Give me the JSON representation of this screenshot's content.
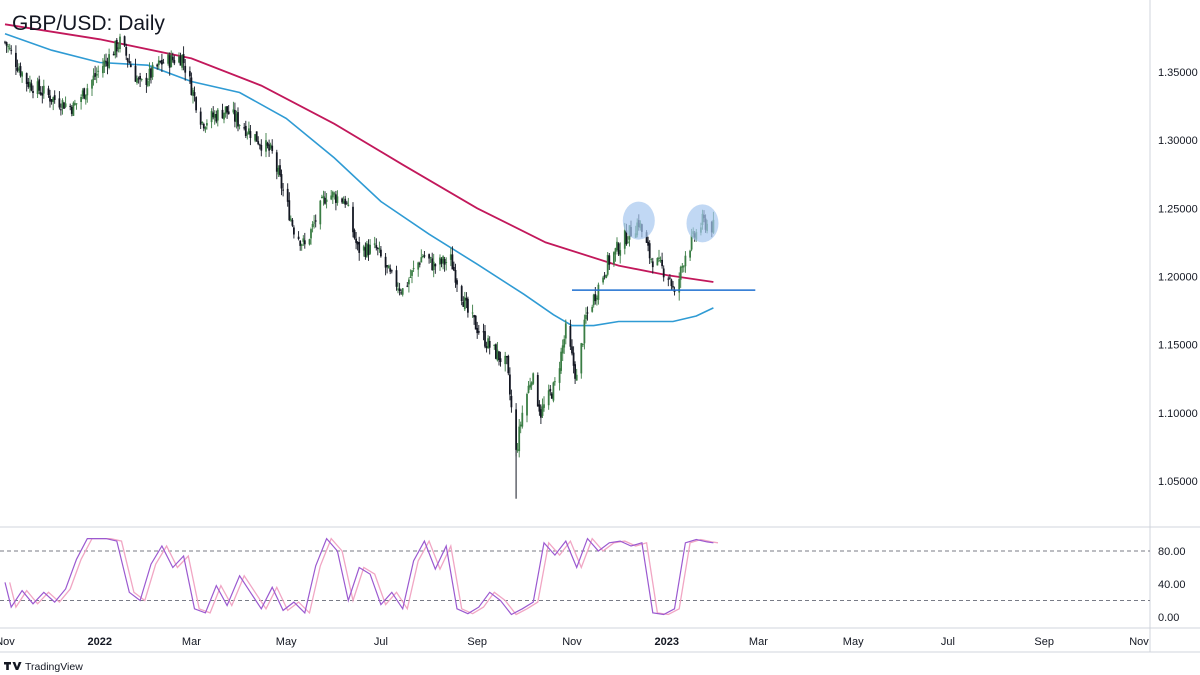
{
  "chart_data": {
    "type": "candlestick",
    "title": "GBP/USD: Daily",
    "watermark": "TradingView",
    "colors": {
      "bull": "#3a7d44",
      "bear": "#131722",
      "ma_slow": "#c2185b",
      "ma_fast": "#2f9bd4",
      "support": "#1e6fd0",
      "highlight": "#a7c7ef",
      "stoch_k": "#9b59d0",
      "stoch_d": "#f1a6c4"
    },
    "price_axis": {
      "min": 1.03,
      "max": 1.39,
      "ticks": [
        1.05,
        1.1,
        1.15,
        1.2,
        1.25,
        1.3,
        1.35
      ],
      "tick_labels": [
        "1.05000",
        "1.10000",
        "1.15000",
        "1.20000",
        "1.25000",
        "1.30000",
        "1.35000"
      ]
    },
    "time_axis": {
      "labels": [
        "Nov",
        "2022",
        "Mar",
        "May",
        "Jul",
        "Sep",
        "Nov",
        "2023",
        "Mar",
        "May",
        "Jul",
        "Sep",
        "Nov"
      ],
      "bold": [
        "2022",
        "2023"
      ],
      "label_dates": [
        "2021-11-01",
        "2022-01-01",
        "2022-03-01",
        "2022-05-01",
        "2022-07-01",
        "2022-09-01",
        "2022-11-01",
        "2023-01-01",
        "2023-03-01",
        "2023-05-01",
        "2023-07-01",
        "2023-09-01",
        "2023-11-01"
      ],
      "range": [
        "2021-11-01",
        "2023-11-01"
      ]
    },
    "price_path": [
      [
        "2021-11-01",
        1.372
      ],
      [
        "2021-11-15",
        1.343
      ],
      [
        "2021-12-01",
        1.331
      ],
      [
        "2021-12-15",
        1.324
      ],
      [
        "2022-01-01",
        1.352
      ],
      [
        "2022-01-14",
        1.372
      ],
      [
        "2022-01-27",
        1.34
      ],
      [
        "2022-02-10",
        1.357
      ],
      [
        "2022-02-23",
        1.361
      ],
      [
        "2022-03-08",
        1.313
      ],
      [
        "2022-03-23",
        1.322
      ],
      [
        "2022-04-08",
        1.306
      ],
      [
        "2022-04-22",
        1.29
      ],
      [
        "2022-05-06",
        1.235
      ],
      [
        "2022-05-13",
        1.222
      ],
      [
        "2022-05-27",
        1.261
      ],
      [
        "2022-06-08",
        1.256
      ],
      [
        "2022-06-16",
        1.22
      ],
      [
        "2022-06-28",
        1.22
      ],
      [
        "2022-07-07",
        1.2
      ],
      [
        "2022-07-15",
        1.19
      ],
      [
        "2022-07-28",
        1.216
      ],
      [
        "2022-08-04",
        1.208
      ],
      [
        "2022-08-15",
        1.212
      ],
      [
        "2022-08-26",
        1.173
      ],
      [
        "2022-09-08",
        1.15
      ],
      [
        "2022-09-20",
        1.135
      ],
      [
        "2022-09-26",
        1.07
      ],
      [
        "2022-09-30",
        1.1
      ],
      [
        "2022-10-06",
        1.128
      ],
      [
        "2022-10-12",
        1.1
      ],
      [
        "2022-10-21",
        1.12
      ],
      [
        "2022-10-28",
        1.16
      ],
      [
        "2022-11-04",
        1.125
      ],
      [
        "2022-11-10",
        1.17
      ],
      [
        "2022-11-24",
        1.21
      ],
      [
        "2022-12-05",
        1.228
      ],
      [
        "2022-12-14",
        1.24
      ],
      [
        "2022-12-21",
        1.215
      ],
      [
        "2023-01-03",
        1.2
      ],
      [
        "2023-01-06",
        1.185
      ],
      [
        "2023-01-13",
        1.217
      ],
      [
        "2023-01-24",
        1.24
      ],
      [
        "2023-01-31",
        1.236
      ]
    ],
    "ma_slow_path": [
      [
        "2021-11-01",
        1.385
      ],
      [
        "2022-01-01",
        1.374
      ],
      [
        "2022-03-01",
        1.36
      ],
      [
        "2022-04-15",
        1.34
      ],
      [
        "2022-06-01",
        1.312
      ],
      [
        "2022-07-15",
        1.282
      ],
      [
        "2022-09-01",
        1.25
      ],
      [
        "2022-10-15",
        1.225
      ],
      [
        "2022-12-01",
        1.208
      ],
      [
        "2023-01-01",
        1.201
      ],
      [
        "2023-01-31",
        1.196
      ]
    ],
    "ma_fast_path": [
      [
        "2021-11-01",
        1.378
      ],
      [
        "2021-12-01",
        1.366
      ],
      [
        "2022-01-01",
        1.357
      ],
      [
        "2022-02-01",
        1.355
      ],
      [
        "2022-03-01",
        1.343
      ],
      [
        "2022-04-01",
        1.335
      ],
      [
        "2022-05-01",
        1.316
      ],
      [
        "2022-06-01",
        1.287
      ],
      [
        "2022-07-01",
        1.255
      ],
      [
        "2022-08-01",
        1.231
      ],
      [
        "2022-09-01",
        1.209
      ],
      [
        "2022-10-01",
        1.187
      ],
      [
        "2022-10-20",
        1.172
      ],
      [
        "2022-11-01",
        1.164
      ],
      [
        "2022-11-15",
        1.164
      ],
      [
        "2022-12-01",
        1.167
      ],
      [
        "2022-12-20",
        1.167
      ],
      [
        "2023-01-05",
        1.167
      ],
      [
        "2023-01-20",
        1.171
      ],
      [
        "2023-01-31",
        1.177
      ]
    ],
    "support": {
      "level": 1.19,
      "from": "2022-11-01",
      "to": "2023-02-27"
    },
    "highlights": [
      {
        "date": "2022-12-14",
        "price": 1.241
      },
      {
        "date": "2023-01-24",
        "price": 1.239
      }
    ],
    "stochastic": {
      "min": 0,
      "max": 100,
      "ticks": [
        0,
        40,
        80
      ],
      "tick_labels": [
        "0.00",
        "40.00",
        "80.00"
      ],
      "levels": [
        20,
        80
      ],
      "path": [
        [
          "2021-11-01",
          42
        ],
        [
          "2021-11-05",
          12
        ],
        [
          "2021-11-12",
          32
        ],
        [
          "2021-11-19",
          16
        ],
        [
          "2021-11-26",
          30
        ],
        [
          "2021-12-03",
          18
        ],
        [
          "2021-12-10",
          34
        ],
        [
          "2021-12-17",
          70
        ],
        [
          "2021-12-24",
          95
        ],
        [
          "2022-01-05",
          95
        ],
        [
          "2022-01-12",
          92
        ],
        [
          "2022-01-20",
          30
        ],
        [
          "2022-01-27",
          20
        ],
        [
          "2022-02-03",
          64
        ],
        [
          "2022-02-10",
          86
        ],
        [
          "2022-02-17",
          60
        ],
        [
          "2022-02-24",
          74
        ],
        [
          "2022-03-03",
          10
        ],
        [
          "2022-03-10",
          5
        ],
        [
          "2022-03-17",
          38
        ],
        [
          "2022-03-24",
          14
        ],
        [
          "2022-04-01",
          50
        ],
        [
          "2022-04-08",
          30
        ],
        [
          "2022-04-15",
          10
        ],
        [
          "2022-04-22",
          36
        ],
        [
          "2022-04-29",
          8
        ],
        [
          "2022-05-06",
          18
        ],
        [
          "2022-05-13",
          5
        ],
        [
          "2022-05-20",
          62
        ],
        [
          "2022-05-27",
          95
        ],
        [
          "2022-06-03",
          80
        ],
        [
          "2022-06-10",
          20
        ],
        [
          "2022-06-17",
          60
        ],
        [
          "2022-06-24",
          52
        ],
        [
          "2022-07-01",
          15
        ],
        [
          "2022-07-08",
          30
        ],
        [
          "2022-07-15",
          10
        ],
        [
          "2022-07-22",
          68
        ],
        [
          "2022-07-29",
          92
        ],
        [
          "2022-08-05",
          58
        ],
        [
          "2022-08-12",
          86
        ],
        [
          "2022-08-19",
          10
        ],
        [
          "2022-08-26",
          4
        ],
        [
          "2022-09-02",
          12
        ],
        [
          "2022-09-09",
          30
        ],
        [
          "2022-09-16",
          20
        ],
        [
          "2022-09-23",
          3
        ],
        [
          "2022-09-30",
          10
        ],
        [
          "2022-10-07",
          18
        ],
        [
          "2022-10-14",
          90
        ],
        [
          "2022-10-21",
          75
        ],
        [
          "2022-10-28",
          92
        ],
        [
          "2022-11-04",
          60
        ],
        [
          "2022-11-11",
          95
        ],
        [
          "2022-11-18",
          80
        ],
        [
          "2022-11-25",
          90
        ],
        [
          "2022-12-02",
          92
        ],
        [
          "2022-12-09",
          86
        ],
        [
          "2022-12-16",
          90
        ],
        [
          "2022-12-23",
          5
        ],
        [
          "2022-12-30",
          3
        ],
        [
          "2023-01-06",
          10
        ],
        [
          "2023-01-13",
          90
        ],
        [
          "2023-01-20",
          94
        ],
        [
          "2023-01-27",
          91
        ],
        [
          "2023-01-31",
          90
        ]
      ]
    }
  }
}
